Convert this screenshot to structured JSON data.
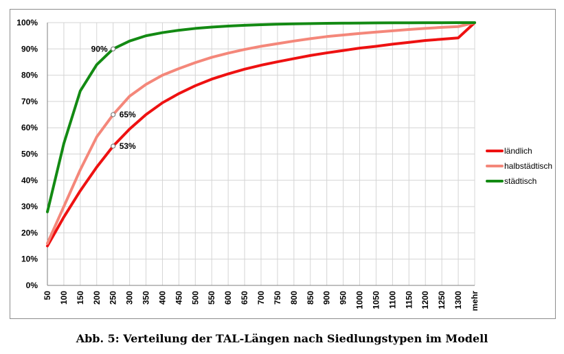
{
  "caption": "Abb. 5: Verteilung der TAL-Längen nach Siedlungstypen im Modell",
  "chart_data": {
    "type": "line",
    "title": "",
    "xlabel": "",
    "ylabel": "",
    "categories": [
      "50",
      "100",
      "150",
      "200",
      "250",
      "300",
      "350",
      "400",
      "450",
      "500",
      "550",
      "600",
      "650",
      "700",
      "750",
      "800",
      "850",
      "900",
      "950",
      "1000",
      "1050",
      "1100",
      "1150",
      "1200",
      "1250",
      "1300",
      "mehr"
    ],
    "ylim": [
      0,
      100
    ],
    "y_ticks": [
      "0%",
      "10%",
      "20%",
      "30%",
      "40%",
      "50%",
      "60%",
      "70%",
      "80%",
      "90%",
      "100%"
    ],
    "grid": true,
    "legend_position": "right",
    "series": [
      {
        "name": "ländlich",
        "color": "#ee1111",
        "values": [
          15,
          26,
          36,
          45,
          53,
          59.5,
          65,
          69.5,
          73,
          76,
          78.5,
          80.5,
          82.3,
          83.8,
          85.1,
          86.3,
          87.5,
          88.5,
          89.4,
          90.3,
          91,
          91.8,
          92.5,
          93.2,
          93.7,
          94.2,
          100
        ]
      },
      {
        "name": "halbstädtisch",
        "color": "#f4877a",
        "values": [
          16,
          30,
          44,
          56.5,
          65,
          72,
          76.5,
          80,
          82.5,
          84.8,
          86.8,
          88.4,
          89.8,
          91,
          92,
          93,
          93.9,
          94.7,
          95.3,
          95.9,
          96.4,
          96.9,
          97.4,
          97.8,
          98.2,
          98.5,
          100
        ]
      },
      {
        "name": "städtisch",
        "color": "#138a13",
        "values": [
          28,
          54,
          74,
          84,
          90,
          93,
          95,
          96.2,
          97.1,
          97.8,
          98.3,
          98.7,
          99,
          99.2,
          99.4,
          99.55,
          99.65,
          99.75,
          99.8,
          99.85,
          99.9,
          99.92,
          99.94,
          99.96,
          99.98,
          99.99,
          100
        ]
      }
    ],
    "annotations": [
      {
        "series": 2,
        "category": "250",
        "value": 90,
        "label": "90%",
        "side": "left"
      },
      {
        "series": 1,
        "category": "250",
        "value": 65,
        "label": "65%",
        "side": "right"
      },
      {
        "series": 0,
        "category": "250",
        "value": 53,
        "label": "53%",
        "side": "right"
      }
    ]
  }
}
